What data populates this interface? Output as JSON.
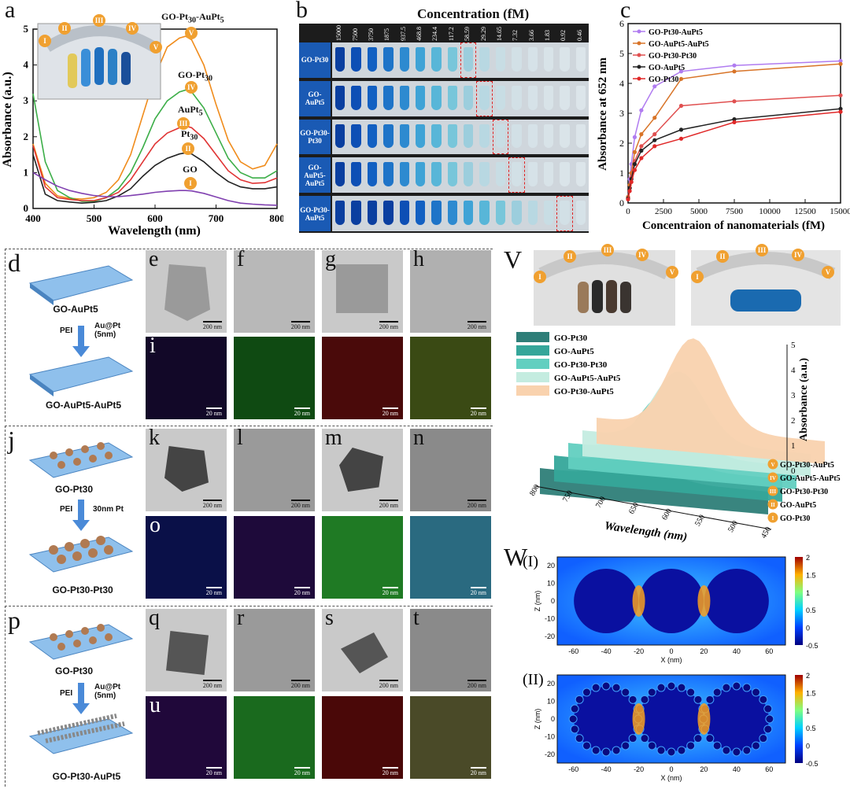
{
  "panels": {
    "a": "a",
    "b": "b",
    "c": "c",
    "d": "d",
    "e": "e",
    "f": "f",
    "g": "g",
    "h": "h",
    "i": "i",
    "j": "j",
    "k": "k",
    "l": "l",
    "m": "m",
    "n": "n",
    "o": "o",
    "p": "p",
    "q": "q",
    "r": "r",
    "s": "s",
    "t": "t",
    "u": "u",
    "v": "V",
    "w": "W"
  },
  "roman": [
    "I",
    "II",
    "III",
    "IV",
    "V"
  ],
  "scale_bars": {
    "nm200": "200 nm",
    "nm20": "20 nm"
  },
  "scheme": {
    "d_top": "GO-AuPt5",
    "d_step1": "PEI",
    "d_step2": "Au@Pt (5nm)",
    "d_bottom": "GO-AuPt5-AuPt5",
    "j_top": "GO-Pt30",
    "j_step1": "PEI",
    "j_step2": "30nm Pt",
    "j_bottom": "GO-Pt30-Pt30",
    "p_top": "GO-Pt30",
    "p_step1": "PEI",
    "p_step2": "Au@Pt (5nm)",
    "p_bottom": "GO-Pt30-AuPt5"
  },
  "colors": {
    "orange": "#f08c1c",
    "green": "#3cae48",
    "red": "#e03434",
    "black": "#222222",
    "purple": "#8040b0",
    "violet": "#b07cf0",
    "teal": "#2a8a84",
    "tem_gray": "#c9c9c9"
  },
  "chart_data": [
    {
      "id": "a",
      "type": "line",
      "title": "",
      "xlabel": "Wavelength (nm)",
      "ylabel": "Absorbance (a.u.)",
      "xlim": [
        400,
        800
      ],
      "ylim": [
        0,
        5
      ],
      "xticks": [
        400,
        500,
        600,
        700,
        800
      ],
      "yticks": [
        0,
        1,
        2,
        3,
        4,
        5
      ],
      "x": [
        400,
        420,
        440,
        460,
        480,
        500,
        520,
        540,
        560,
        580,
        600,
        620,
        640,
        650,
        660,
        680,
        700,
        720,
        740,
        760,
        780,
        800
      ],
      "series": [
        {
          "name": "GO-Pt30-AuPt5",
          "label_display": "GO-Pt30-AuPt5",
          "color": "#f08c1c",
          "values": [
            1.8,
            0.7,
            0.35,
            0.28,
            0.26,
            0.3,
            0.45,
            0.8,
            1.5,
            2.6,
            3.7,
            4.5,
            4.75,
            4.8,
            4.7,
            4.0,
            2.9,
            1.9,
            1.3,
            1.1,
            1.2,
            1.8
          ]
        },
        {
          "name": "GO-Pt30",
          "label_display": "GO-Pt30",
          "color": "#3cae48",
          "values": [
            3.2,
            1.3,
            0.5,
            0.3,
            0.2,
            0.2,
            0.3,
            0.55,
            1.0,
            1.7,
            2.5,
            3.0,
            3.25,
            3.3,
            3.25,
            2.8,
            2.1,
            1.4,
            1.0,
            0.85,
            0.85,
            1.05
          ]
        },
        {
          "name": "AuPt5",
          "label_display": "AuPt5",
          "color": "#e03434",
          "values": [
            1.75,
            0.6,
            0.3,
            0.25,
            0.22,
            0.22,
            0.3,
            0.45,
            0.8,
            1.3,
            1.8,
            2.1,
            2.25,
            2.3,
            2.25,
            1.95,
            1.5,
            1.05,
            0.8,
            0.7,
            0.72,
            0.85
          ]
        },
        {
          "name": "Pt30",
          "label_display": "Pt30",
          "color": "#222222",
          "values": [
            1.5,
            0.4,
            0.22,
            0.18,
            0.15,
            0.17,
            0.22,
            0.35,
            0.55,
            0.9,
            1.2,
            1.4,
            1.52,
            1.55,
            1.52,
            1.3,
            1.0,
            0.75,
            0.6,
            0.55,
            0.55,
            0.6
          ]
        },
        {
          "name": "GO",
          "label_display": "GO",
          "color": "#8040b0",
          "values": [
            1.0,
            0.8,
            0.62,
            0.5,
            0.42,
            0.36,
            0.33,
            0.33,
            0.36,
            0.4,
            0.45,
            0.48,
            0.5,
            0.5,
            0.49,
            0.42,
            0.32,
            0.22,
            0.15,
            0.12,
            0.1,
            0.09
          ]
        }
      ],
      "curve_labels": {
        "GO-Pt30-AuPt5": "GO-Pt30-AuPt5",
        "GO-Pt30": "GO-Pt30",
        "AuPt5": "AuPt5",
        "Pt30": "Pt30",
        "GO": "GO"
      }
    },
    {
      "id": "c",
      "type": "line",
      "title": "",
      "xlabel": "Concentraion of nanomaterials (fM)",
      "ylabel": "Absorbance at 652 nm",
      "xlim": [
        0,
        15000
      ],
      "ylim": [
        0,
        6
      ],
      "xticks": [
        0,
        2500,
        5000,
        7500,
        10000,
        12500,
        15000
      ],
      "yticks": [
        0,
        1,
        2,
        3,
        4,
        5,
        6
      ],
      "x": [
        0,
        117.2,
        234.4,
        468.8,
        937.5,
        1875,
        3750,
        7500,
        15000
      ],
      "series": [
        {
          "name": "GO-Pt30-AuPt5",
          "color": "#b07cf0",
          "values": [
            0.2,
            0.8,
            1.3,
            2.2,
            3.1,
            3.9,
            4.4,
            4.6,
            4.75
          ]
        },
        {
          "name": "GO-AuPt5-AuPt5",
          "color": "#d87428",
          "values": [
            0.2,
            0.6,
            1.0,
            1.7,
            2.3,
            2.85,
            4.15,
            4.4,
            4.65
          ]
        },
        {
          "name": "GO-Pt30-Pt30",
          "color": "#e05050",
          "values": [
            0.15,
            0.5,
            0.85,
            1.4,
            1.9,
            2.3,
            3.25,
            3.4,
            3.6
          ]
        },
        {
          "name": "GO-AuPt5",
          "color": "#222222",
          "values": [
            0.15,
            0.5,
            0.8,
            1.3,
            1.75,
            2.1,
            2.45,
            2.8,
            3.15
          ]
        },
        {
          "name": "GO-Pt30",
          "color": "#e02828",
          "values": [
            0.12,
            0.4,
            0.7,
            1.1,
            1.5,
            1.9,
            2.15,
            2.7,
            3.05
          ]
        }
      ]
    },
    {
      "id": "v",
      "type": "area",
      "title": "",
      "xlabel": "Wavelength (nm)",
      "ylabel": "Absorbance (a.u.)",
      "xticks": [
        800,
        750,
        700,
        650,
        600,
        550,
        500,
        450
      ],
      "zticks": [
        0,
        1,
        2,
        3,
        4,
        5
      ],
      "series": [
        {
          "name": "GO-Pt30",
          "roman": "I",
          "color": "#2e7e78",
          "peak": 1.55
        },
        {
          "name": "GO-AuPt5",
          "roman": "II",
          "color": "#35a69a",
          "peak": 2.3
        },
        {
          "name": "GO-Pt30-Pt30",
          "roman": "III",
          "color": "#62cfc0",
          "peak": 3.3
        },
        {
          "name": "GO-AuPt5-AuPt5",
          "roman": "IV",
          "color": "#c4ece0",
          "peak": 3.8
        },
        {
          "name": "GO-Pt30-AuPt5",
          "roman": "V",
          "color": "#f9d2ae",
          "peak": 4.8
        }
      ]
    },
    {
      "id": "w",
      "type": "heatmap",
      "title": "",
      "xlabel": "X (nm)",
      "ylabel": "Z (nm)",
      "xticks": [
        -60,
        -40,
        -20,
        0,
        20,
        40,
        60
      ],
      "yticks": [
        20,
        10,
        0,
        -10,
        -20
      ],
      "colorbar_ticks": [
        2,
        1.5,
        1,
        0.5,
        0,
        -0.5
      ],
      "subpanels": [
        "(I)",
        "(II)"
      ]
    }
  ],
  "panel_b": {
    "title": "Concentration (fM)",
    "concentrations": [
      "15000",
      "7500",
      "3750",
      "1875",
      "937.5",
      "468.8",
      "234.4",
      "117.2",
      "58.59",
      "29.29",
      "14.65",
      "7.32",
      "3.66",
      "1.83",
      "0.92",
      "0.46"
    ],
    "rows": [
      "GO-Pt30",
      "GO-AuPt5",
      "GO-Pt30-Pt30",
      "GO-AuPt5-AuPt5",
      "GO-Pt30-AuPt5"
    ],
    "threshold_index": [
      8,
      9,
      10,
      11,
      14
    ]
  }
}
